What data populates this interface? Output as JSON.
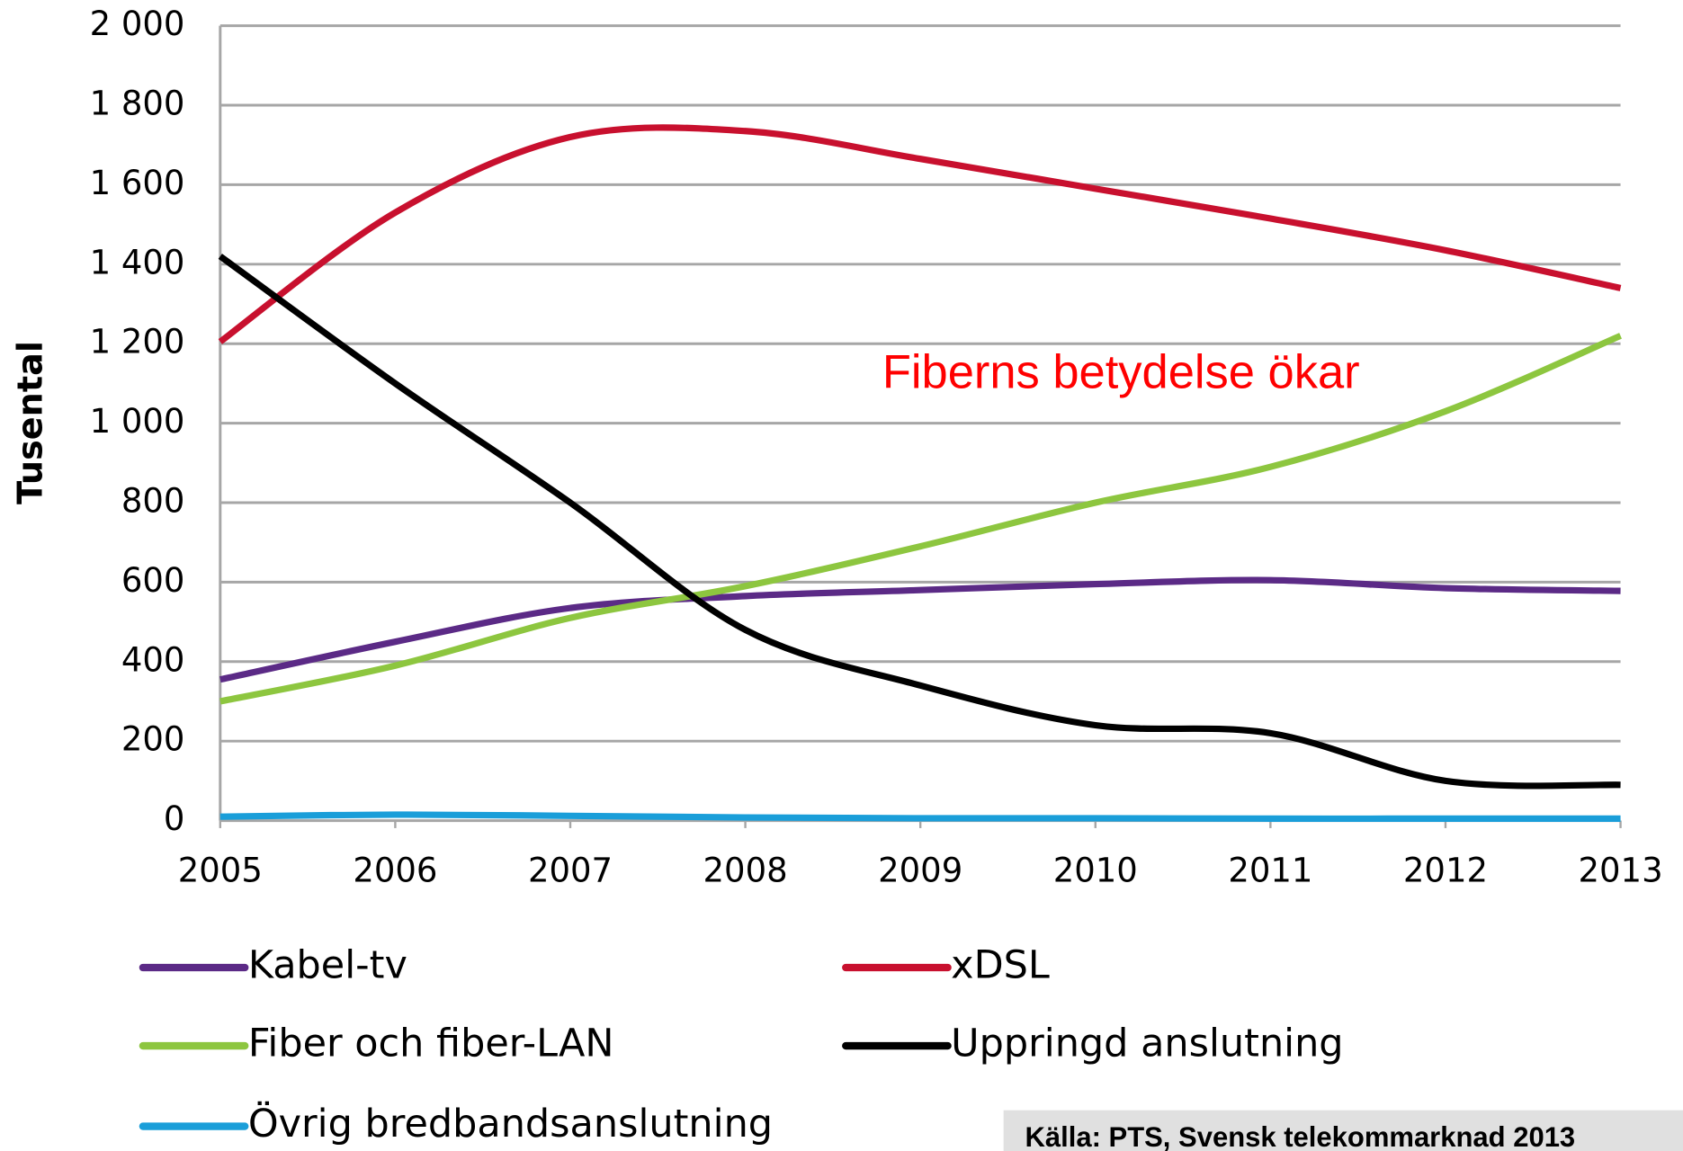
{
  "chart_data": {
    "type": "line",
    "y_label": "Tusental",
    "annotation": "Fiberns betydelse ökar",
    "source": "Källa: PTS, Svensk telekommarknad 2013",
    "categories": [
      "2005",
      "2006",
      "2007",
      "2008",
      "2009",
      "2010",
      "2011",
      "2012",
      "2013"
    ],
    "series": [
      {
        "name": "Kabel-tv",
        "color": "#5b2a86",
        "values": [
          355,
          450,
          535,
          565,
          580,
          595,
          605,
          585,
          578
        ]
      },
      {
        "name": "xDSL",
        "color": "#c8102e",
        "values": [
          1205,
          1530,
          1720,
          1735,
          1665,
          1590,
          1515,
          1435,
          1340
        ]
      },
      {
        "name": "Fiber och fiber-LAN",
        "color": "#8dc63f",
        "values": [
          300,
          390,
          510,
          590,
          690,
          800,
          890,
          1030,
          1220
        ]
      },
      {
        "name": "Uppringd anslutning",
        "color": "#000000",
        "values": [
          1420,
          1100,
          800,
          480,
          340,
          240,
          220,
          100,
          90
        ]
      },
      {
        "name": "Övrig bredbandsanslutning",
        "color": "#1a9ed9",
        "values": [
          10,
          15,
          12,
          8,
          6,
          6,
          5,
          5,
          5
        ]
      }
    ],
    "ylim": [
      0,
      2000
    ],
    "yticks": [
      0,
      {
        "value": 200,
        "label": "200"
      },
      {
        "value": 400,
        "label": "400"
      },
      {
        "value": 600,
        "label": "600"
      },
      {
        "value": 800,
        "label": "800"
      },
      {
        "value": 1000,
        "label": "1 000"
      },
      {
        "value": 1200,
        "label": "1 200"
      },
      {
        "value": 1400,
        "label": "1 400"
      },
      {
        "value": 1600,
        "label": "1 600"
      },
      {
        "value": 1800,
        "label": "1 800"
      },
      {
        "value": 2000,
        "label": "2 000"
      }
    ],
    "grid": true
  }
}
